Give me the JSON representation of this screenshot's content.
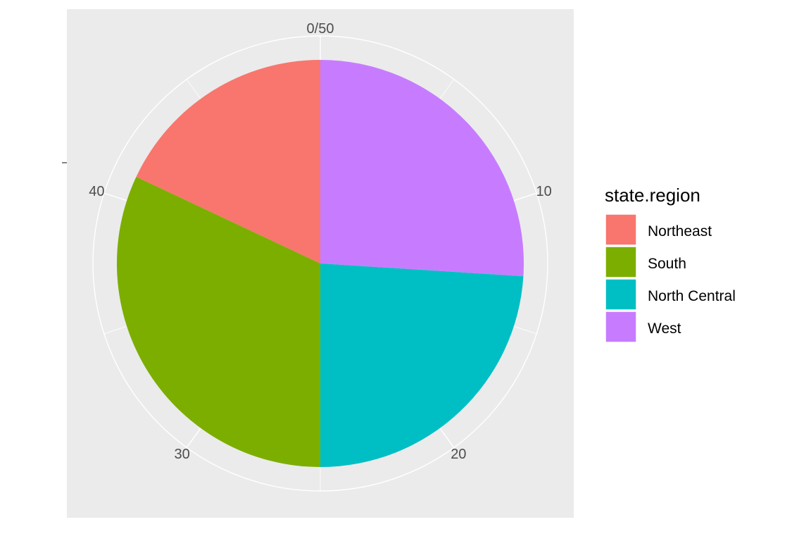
{
  "chart_data": {
    "type": "pie",
    "coordinate_system": "polar (ggplot2 coord_polar, theta = y)",
    "total": 50,
    "slices": [
      {
        "name": "Northeast",
        "value": 9,
        "color": "#F8766D"
      },
      {
        "name": "South",
        "value": 16,
        "color": "#7CAE00"
      },
      {
        "name": "North Central",
        "value": 12,
        "color": "#00BFC4"
      },
      {
        "name": "West",
        "value": 13,
        "color": "#C77CFF"
      }
    ],
    "stack_order_clockwise_from_top": [
      "West",
      "North Central",
      "South",
      "Northeast"
    ],
    "theta_axis": {
      "ticks": [
        {
          "value": 0,
          "label": "0/50"
        },
        {
          "value": 10,
          "label": "10"
        },
        {
          "value": 20,
          "label": "20"
        },
        {
          "value": 30,
          "label": "30"
        },
        {
          "value": 40,
          "label": "40"
        }
      ]
    },
    "legend": {
      "title": "state.region",
      "position": "right",
      "items": [
        "Northeast",
        "South",
        "North Central",
        "West"
      ]
    },
    "panel_background": "#EBEBEB",
    "grid_color": "#FFFFFF",
    "grid": true
  }
}
